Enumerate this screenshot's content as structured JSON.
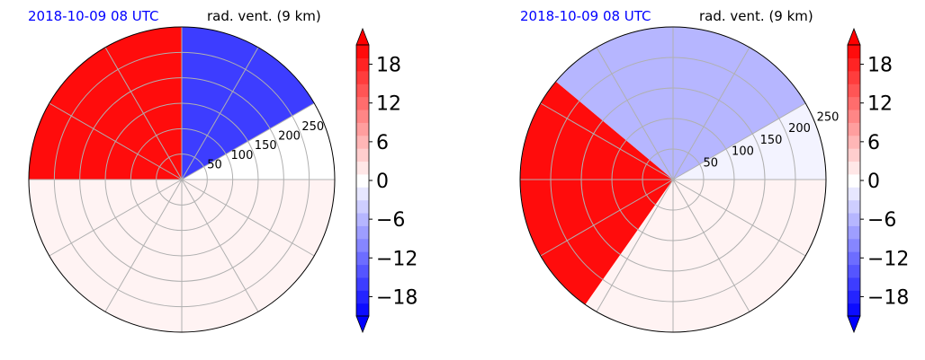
{
  "colors": {
    "date_text": "#0000ff",
    "grid": "#b0b0b0",
    "outline": "#000000",
    "colormap_low": "#0000ff",
    "colormap_mid": "#ffffff",
    "colormap_high": "#ff0000"
  },
  "chart_data": [
    {
      "type": "polar-contourf",
      "title_left": "2018-10-09 08 UTC",
      "title_right": "rad. vent. (9 km)",
      "radial_ticks": [
        "50",
        "100",
        "150",
        "200",
        "250"
      ],
      "radial_tick_values": [
        50,
        100,
        150,
        200,
        250
      ],
      "r_max": 300,
      "angular_gridlines_deg": [
        0,
        30,
        60,
        90,
        120,
        150,
        180,
        210,
        240,
        270,
        300,
        330
      ],
      "colorbar": {
        "ticks": [
          "18",
          "12",
          "6",
          "0",
          "−6",
          "−12",
          "−18"
        ],
        "tick_values": [
          18,
          12,
          6,
          0,
          -6,
          -12,
          -18
        ],
        "levels": [
          -21,
          -19,
          -17,
          -15,
          -13,
          -11,
          -9,
          -7,
          -5,
          -3,
          -1,
          1,
          3,
          5,
          7,
          9,
          11,
          13,
          15,
          17,
          19,
          21
        ],
        "range": [
          -21,
          21
        ],
        "extend": "both"
      },
      "field_summary": [
        {
          "sector_deg": [
            90,
            180
          ],
          "value": 20
        },
        {
          "sector_deg": [
            30,
            90
          ],
          "value": -16
        },
        {
          "sector_deg": [
            180,
            360
          ],
          "value": 1
        },
        {
          "sector_deg": [
            0,
            30
          ],
          "value": 0
        }
      ]
    },
    {
      "type": "polar-contourf",
      "title_left": "2018-10-09 08 UTC",
      "title_right": "rad. vent. (9 km)",
      "radial_ticks": [
        "50",
        "100",
        "150",
        "200",
        "250"
      ],
      "radial_tick_values": [
        50,
        100,
        150,
        200,
        250
      ],
      "r_max": 250,
      "angular_gridlines_deg": [
        0,
        30,
        60,
        90,
        120,
        150,
        180,
        210,
        240,
        270,
        300,
        330
      ],
      "colorbar": {
        "ticks": [
          "18",
          "12",
          "6",
          "0",
          "−6",
          "−12",
          "−18"
        ],
        "tick_values": [
          18,
          12,
          6,
          0,
          -6,
          -12,
          -18
        ],
        "levels": [
          -21,
          -19,
          -17,
          -15,
          -13,
          -11,
          -9,
          -7,
          -5,
          -3,
          -1,
          1,
          3,
          5,
          7,
          9,
          11,
          13,
          15,
          17,
          19,
          21
        ],
        "range": [
          -21,
          21
        ],
        "extend": "both"
      },
      "field_summary": [
        {
          "sector_deg": [
            140,
            235
          ],
          "value": 20
        },
        {
          "sector_deg": [
            30,
            140
          ],
          "value": -6
        },
        {
          "sector_deg": [
            235,
            360
          ],
          "value": 1
        },
        {
          "sector_deg": [
            0,
            30
          ],
          "value": -1
        }
      ]
    }
  ]
}
